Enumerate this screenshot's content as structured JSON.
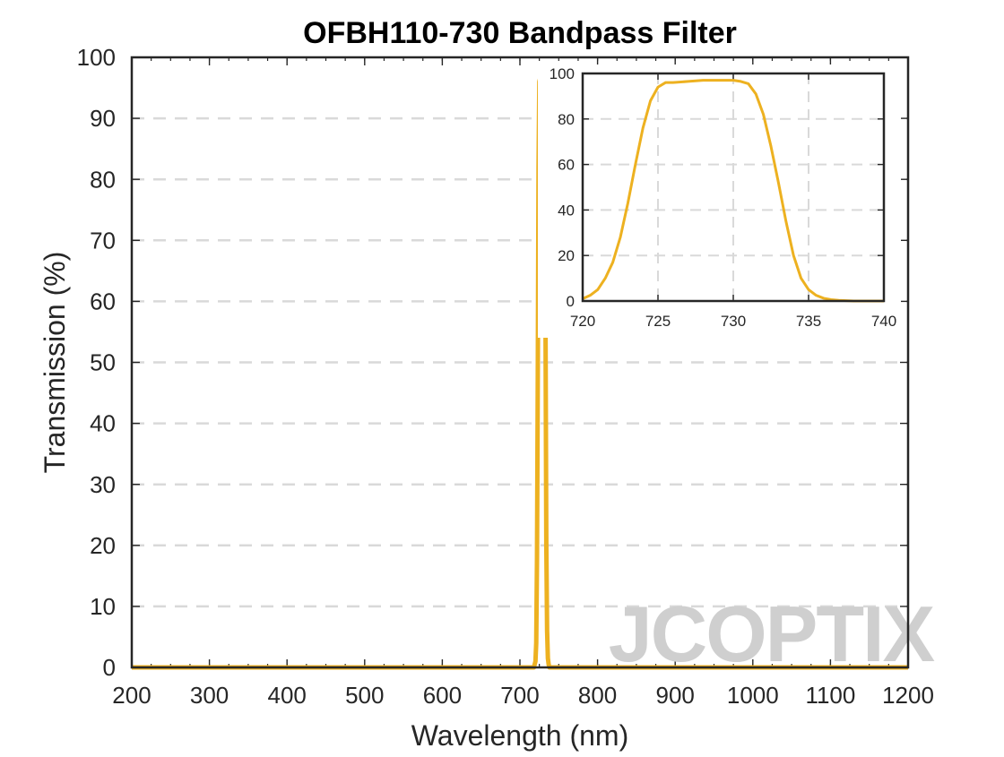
{
  "chart_data": [
    {
      "type": "line",
      "title": "OFBH110-730 Bandpass Filter",
      "xlabel": "Wavelength (nm)",
      "ylabel": "Transmission (%)",
      "xlim": [
        200,
        1200
      ],
      "ylim": [
        0,
        100
      ],
      "xticks": [
        200,
        300,
        400,
        500,
        600,
        700,
        800,
        900,
        1000,
        1100,
        1200
      ],
      "yticks": [
        0,
        10,
        20,
        30,
        40,
        50,
        60,
        70,
        80,
        90,
        100
      ],
      "grid": true,
      "series": [
        {
          "color": "#EDB120",
          "x": [
            200,
            715,
            718,
            720,
            721,
            722,
            723,
            724,
            725,
            726,
            727,
            728,
            729,
            730,
            731,
            732,
            733,
            734,
            735,
            736,
            737,
            738,
            740,
            745,
            1200
          ],
          "y": [
            0,
            0,
            0,
            1,
            4,
            18,
            48,
            82,
            96,
            96.5,
            96.5,
            97,
            97,
            97,
            96,
            88,
            55,
            20,
            6,
            1.5,
            0.5,
            0,
            0,
            0,
            0
          ]
        }
      ]
    },
    {
      "type": "line",
      "title": "",
      "xlabel": "",
      "ylabel": "",
      "xlim": [
        720,
        740
      ],
      "ylim": [
        0,
        100
      ],
      "xticks": [
        720,
        725,
        730,
        735,
        740
      ],
      "yticks": [
        0,
        20,
        40,
        60,
        80,
        100
      ],
      "grid": true,
      "series": [
        {
          "color": "#EDB120",
          "x": [
            720,
            720.5,
            721,
            721.5,
            722,
            722.5,
            723,
            723.5,
            724,
            724.5,
            725,
            725.5,
            726,
            727,
            728,
            729,
            729.5,
            730,
            730.5,
            731,
            731.5,
            732,
            732.5,
            733,
            733.5,
            734,
            734.5,
            735,
            735.5,
            736,
            736.5,
            737,
            738,
            740
          ],
          "y": [
            1,
            2.5,
            5,
            10,
            17,
            28,
            43,
            60,
            76,
            88,
            94,
            96,
            96,
            96.5,
            97,
            97,
            97,
            97,
            96.5,
            95.5,
            91,
            82,
            68,
            52,
            35,
            20,
            10,
            5,
            2.5,
            1.2,
            0.6,
            0.3,
            0,
            0
          ]
        }
      ]
    }
  ],
  "watermark": "JCOPTIX"
}
